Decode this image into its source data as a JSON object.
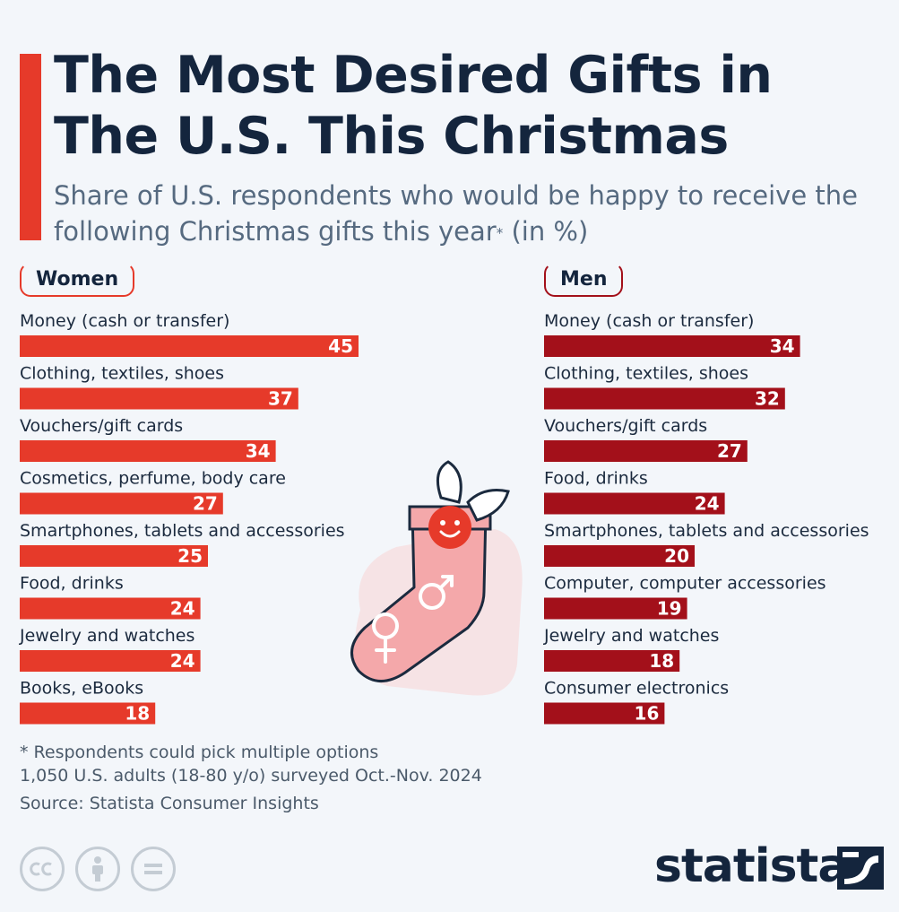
{
  "title": "The Most Desired Gifts in The U.S. This Christmas",
  "subtitle": "Share of U.S. respondents who would be happy to receive the following Christmas gifts this year",
  "subtitle_marker": "*",
  "subtitle_unit": "(in %)",
  "colors": {
    "accent": "#e63a2a",
    "women_bar": "#e63a2a",
    "men_bar": "#a3101a",
    "title": "#14253d"
  },
  "chart_data": [
    {
      "type": "bar",
      "orientation": "horizontal",
      "title": "Women",
      "categories": [
        "Money (cash or transfer)",
        "Clothing, textiles, shoes",
        "Vouchers/gift cards",
        "Cosmetics, perfume, body care",
        "Smartphones, tablets and accessories",
        "Food, drinks",
        "Jewelry and watches",
        "Books, eBooks"
      ],
      "values": [
        45,
        37,
        34,
        27,
        25,
        24,
        24,
        18
      ],
      "xlim": [
        0,
        45
      ],
      "grid": false
    },
    {
      "type": "bar",
      "orientation": "horizontal",
      "title": "Men",
      "categories": [
        "Money (cash or transfer)",
        "Clothing, textiles, shoes",
        "Vouchers/gift cards",
        "Food, drinks",
        "Smartphones, tablets and accessories",
        "Computer, computer accessories",
        "Jewelry and watches",
        "Consumer electronics"
      ],
      "values": [
        34,
        32,
        27,
        24,
        20,
        19,
        18,
        16
      ],
      "xlim": [
        0,
        45
      ],
      "grid": false
    }
  ],
  "footnote_1": "* Respondents could pick multiple options",
  "footnote_2": "1,050 U.S. adults (18-80 y/o) surveyed Oct.-Nov. 2024",
  "source": "Source: Statista Consumer Insights",
  "brand": "statista",
  "license_icons": [
    "cc-icon",
    "attribution-icon",
    "no-derivatives-icon"
  ]
}
